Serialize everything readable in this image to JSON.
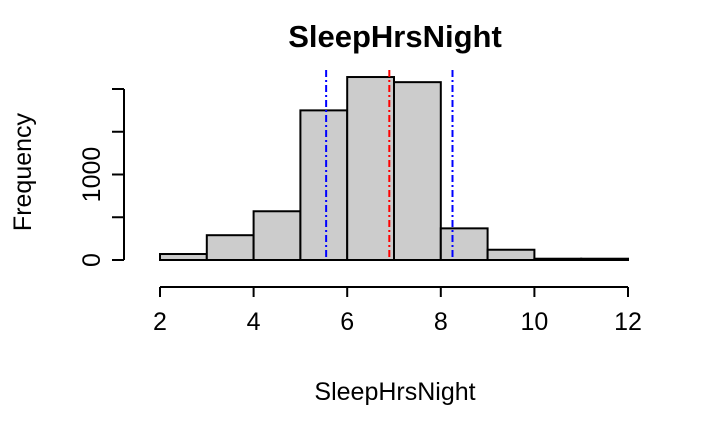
{
  "chart_data": {
    "type": "bar",
    "title": "SleepHrsNight",
    "xlabel": "SleepHrsNight",
    "ylabel": "Frequency",
    "bin_edges": [
      2,
      3,
      4,
      5,
      6,
      7,
      8,
      9,
      10,
      11,
      12
    ],
    "values": [
      70,
      290,
      570,
      1750,
      2140,
      2080,
      370,
      120,
      15,
      15
    ],
    "xlim": [
      2,
      12
    ],
    "ylim": [
      0,
      2000
    ],
    "x_ticks": [
      2,
      4,
      6,
      8,
      10,
      12
    ],
    "y_ticks": [
      0,
      500,
      1000,
      1500,
      2000
    ],
    "y_tick_labels": [
      "0",
      "",
      "1000",
      "",
      ""
    ],
    "bar_color": "#cccccc",
    "reference_lines": [
      {
        "x": 5.55,
        "color": "#0000ff",
        "style": "dot-dash"
      },
      {
        "x": 6.9,
        "color": "#ff0000",
        "style": "dot-dash"
      },
      {
        "x": 8.25,
        "color": "#0000ff",
        "style": "dot-dash"
      }
    ],
    "grid": false
  }
}
